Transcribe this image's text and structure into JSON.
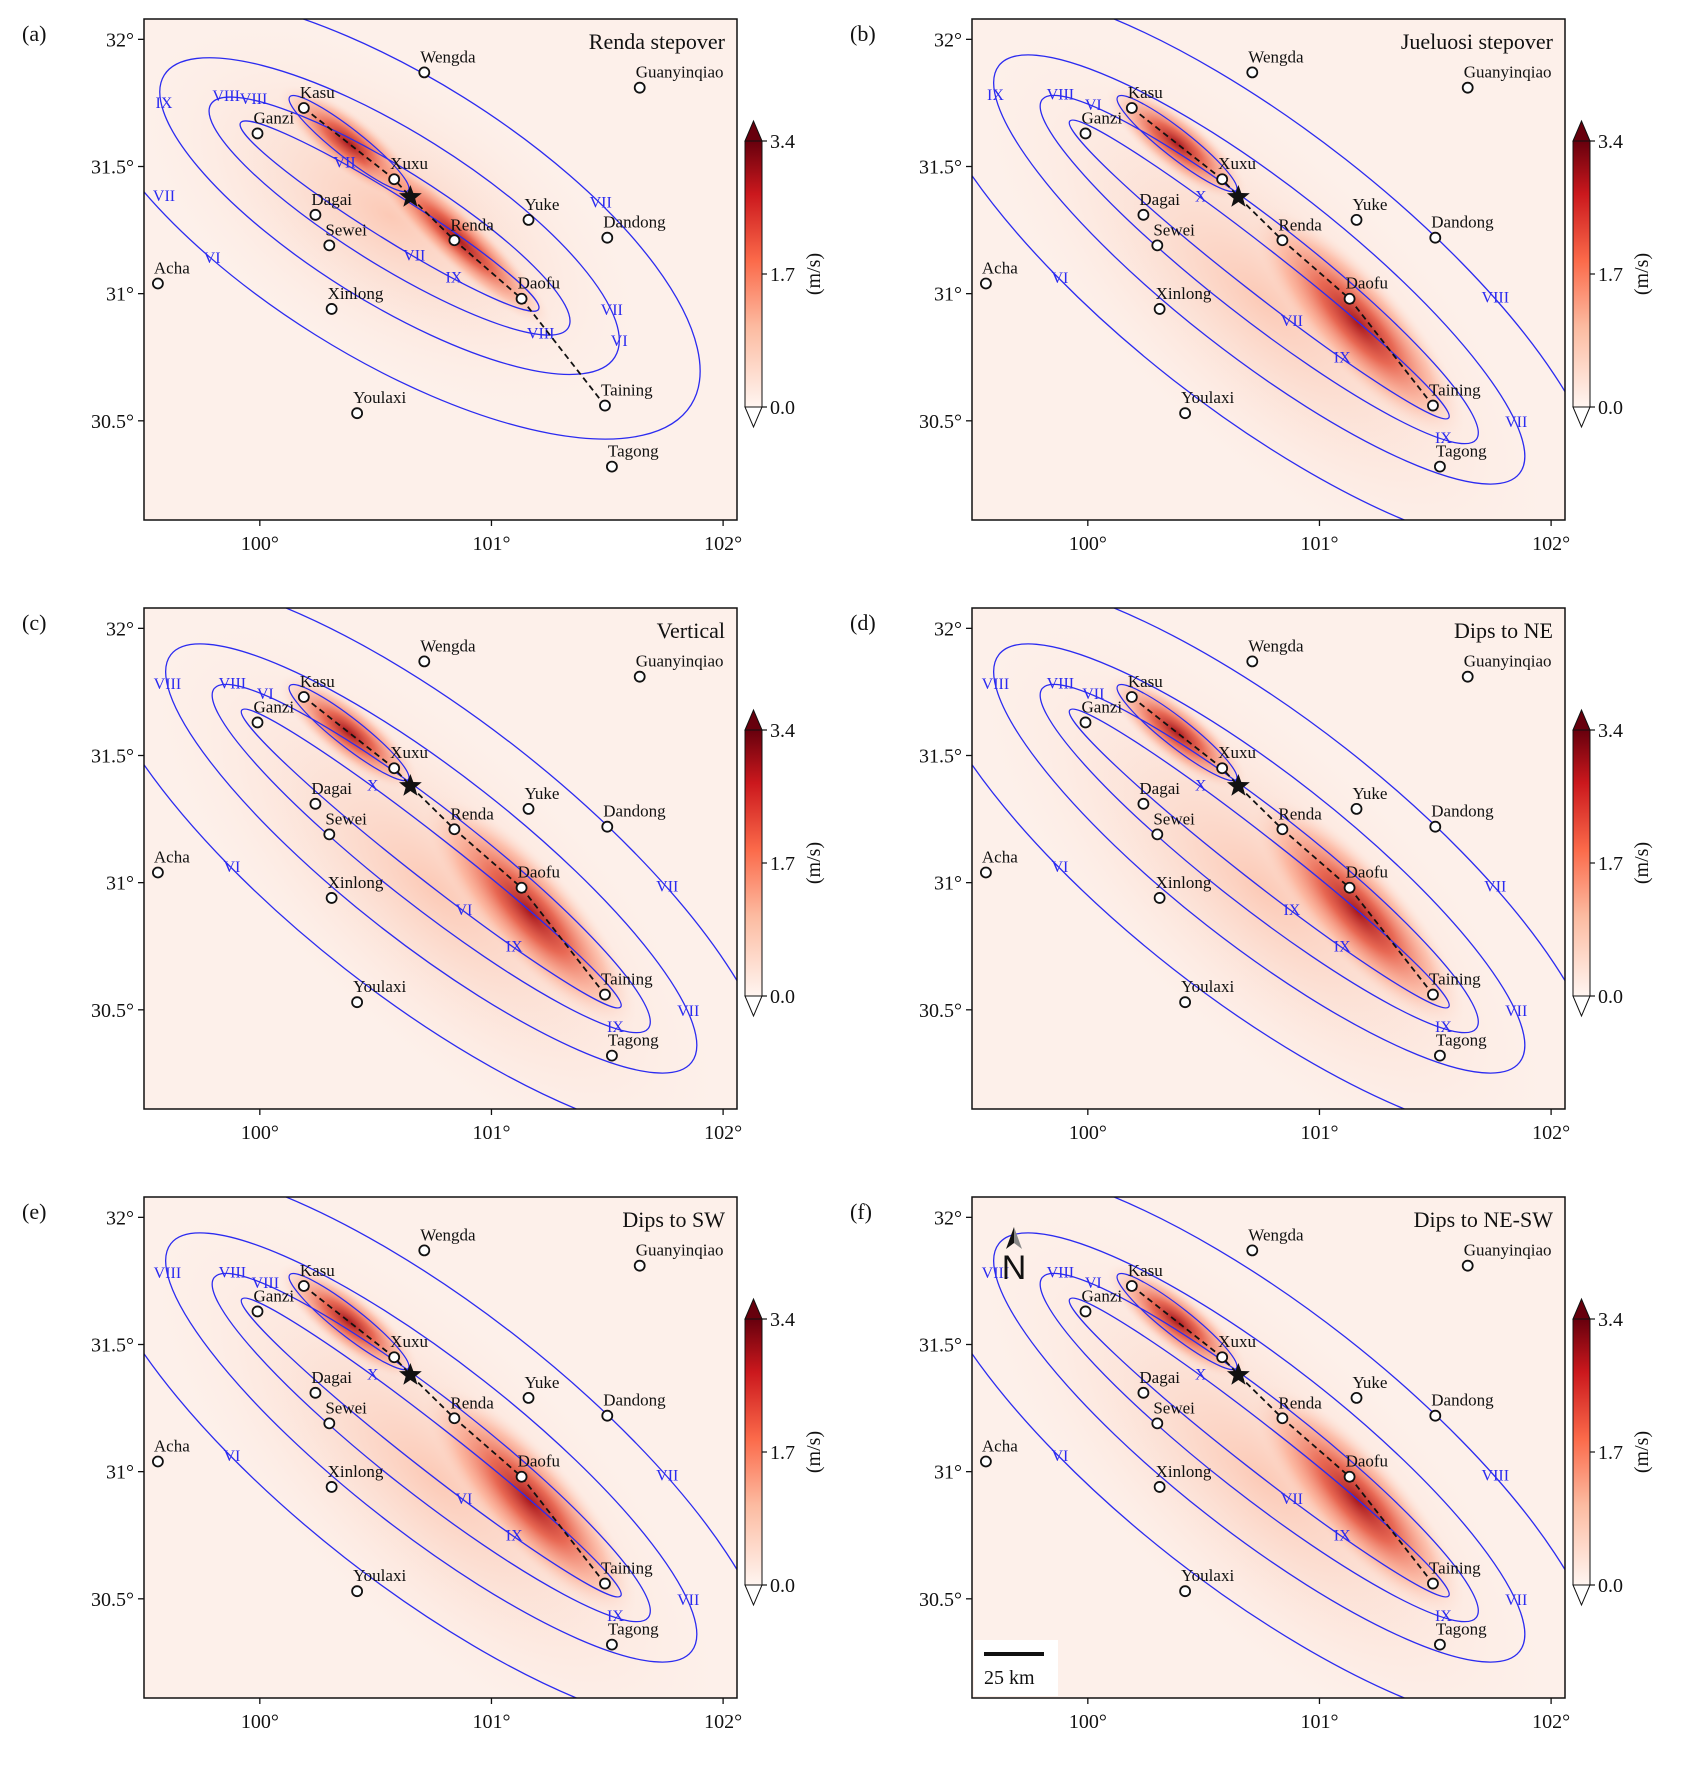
{
  "xlim": [
    99.5,
    102.06
  ],
  "ylim": [
    30.11,
    32.08
  ],
  "xticks": [
    {
      "value": 100,
      "label": "100°"
    },
    {
      "value": 101,
      "label": "101°"
    },
    {
      "value": 102,
      "label": "102°"
    }
  ],
  "yticks": [
    {
      "value": 30.5,
      "label": "30.5°"
    },
    {
      "value": 31,
      "label": "31°"
    },
    {
      "value": 31.5,
      "label": "31.5°"
    },
    {
      "value": 32,
      "label": "32°"
    }
  ],
  "colorbar": {
    "clim": [
      0,
      3.4
    ],
    "ticks": [
      {
        "value": 0,
        "label": "0.0"
      },
      1.7,
      3.4
    ],
    "unit": "(m/s)"
  },
  "towns": [
    {
      "name": "Kasu",
      "lon": 100.19,
      "lat": 31.73
    },
    {
      "name": "Ganzi",
      "lon": 99.99,
      "lat": 31.63
    },
    {
      "name": "Xuxu",
      "lon": 100.58,
      "lat": 31.45
    },
    {
      "name": "Dagai",
      "lon": 100.24,
      "lat": 31.31
    },
    {
      "name": "Sewei",
      "lon": 100.3,
      "lat": 31.19
    },
    {
      "name": "Renda",
      "lon": 100.84,
      "lat": 31.21
    },
    {
      "name": "Yuke",
      "lon": 101.16,
      "lat": 31.29
    },
    {
      "name": "Dandong",
      "lon": 101.5,
      "lat": 31.22
    },
    {
      "name": "Acha",
      "lon": 99.56,
      "lat": 31.04
    },
    {
      "name": "Xinlong",
      "lon": 100.31,
      "lat": 30.94
    },
    {
      "name": "Daofu",
      "lon": 101.13,
      "lat": 30.98
    },
    {
      "name": "Taining",
      "lon": 101.49,
      "lat": 30.56
    },
    {
      "name": "Youlaxi",
      "lon": 100.42,
      "lat": 30.53
    },
    {
      "name": "Tagong",
      "lon": 101.52,
      "lat": 30.32
    },
    {
      "name": "Wengda",
      "lon": 100.71,
      "lat": 31.87
    },
    {
      "name": "Guanyinqiao",
      "lon": 101.64,
      "lat": 31.81
    }
  ],
  "epicenter": {
    "lon": 100.65,
    "lat": 31.38
  },
  "fault_trace": {
    "lon": [
      100.19,
      100.58,
      100.65,
      100.84,
      101.13,
      101.49
    ],
    "lat": [
      31.73,
      31.45,
      31.38,
      31.21,
      30.98,
      30.56
    ]
  },
  "panels": [
    {
      "label": "(a)",
      "title": "Renda stepover",
      "contour_labels": [
        "IX",
        "VIII",
        "VII",
        "VI",
        "VII",
        "VIII",
        "IX",
        "VII",
        "VII",
        "VIII",
        "VI",
        "VII"
      ]
    },
    {
      "label": "(b)",
      "title": "Jueluosi stepover",
      "contour_labels": [
        "IX",
        "VIII",
        "VII",
        "VI",
        "X",
        "IX",
        "IX",
        "VIII",
        "VII",
        "VI"
      ]
    },
    {
      "label": "(c)",
      "title": "Vertical",
      "contour_labels": [
        "IX",
        "VIII",
        "VII",
        "VI",
        "X",
        "IX",
        "VIII",
        "VII",
        "VI",
        "VI"
      ]
    },
    {
      "label": "(d)",
      "title": "Dips to NE",
      "contour_labels": [
        "IX",
        "VIII",
        "VII",
        "VI",
        "X",
        "IX",
        "VIII",
        "VII",
        "IX",
        "VII"
      ]
    },
    {
      "label": "(e)",
      "title": "Dips to SW",
      "contour_labels": [
        "IX",
        "VIII",
        "VII",
        "VI",
        "X",
        "IX",
        "VIII",
        "VII",
        "VI",
        "VIII"
      ]
    },
    {
      "label": "(f)",
      "title": "Dips to NE-SW",
      "contour_labels": [
        "IX",
        "VIII",
        "VII",
        "VI",
        "X",
        "IX",
        "VIII",
        "VIII",
        "VII",
        "VI"
      ],
      "north_label": "N",
      "scale_label": "25 km"
    }
  ]
}
